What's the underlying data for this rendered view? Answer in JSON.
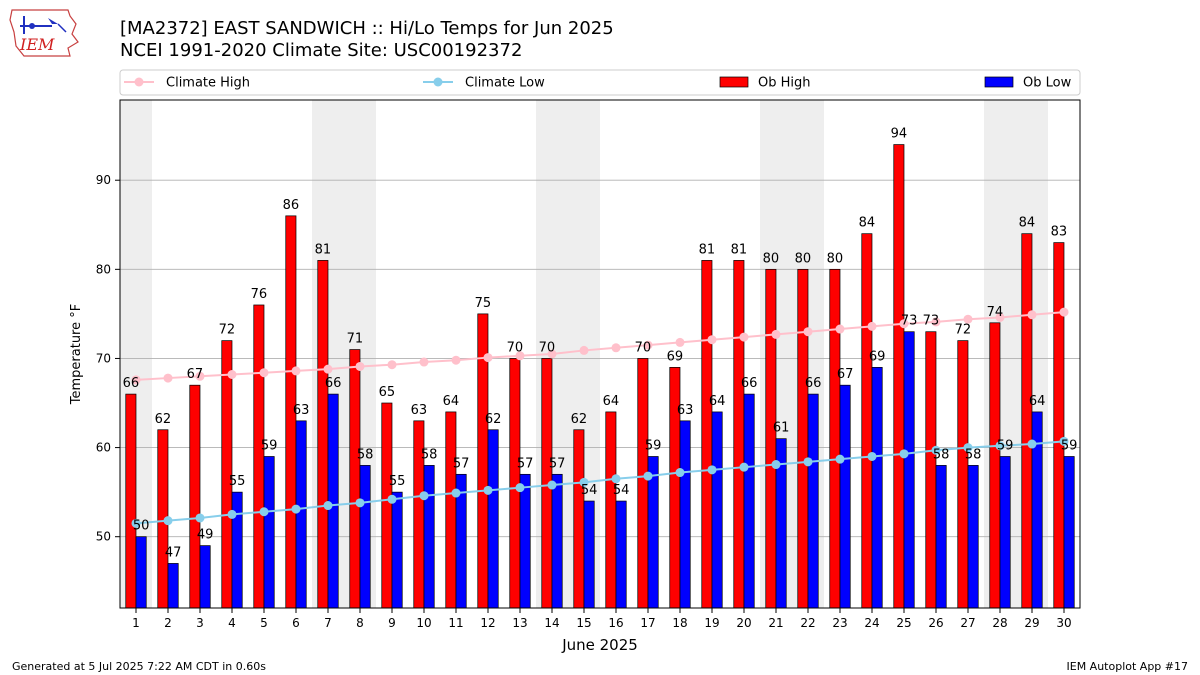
{
  "header": {
    "title_line1": "[MA2372] EAST SANDWICH :: Hi/Lo Temps for Jun 2025",
    "title_line2": "NCEI 1991-2020 Climate Site: USC00192372",
    "logo_text": "IEM"
  },
  "footer": {
    "generated": "Generated at 5 Jul 2025 7:22 AM CDT in 0.60s",
    "app": "IEM Autoplot App #17"
  },
  "colors": {
    "ob_high": "#ff0000",
    "ob_low": "#0000ff",
    "climate_high": "#ffc0cb",
    "climate_low": "#87ceeb",
    "weekend_shade": "#eeeeee",
    "grid": "#b0b0b0"
  },
  "chart_data": {
    "type": "bar",
    "xlabel": "June 2025",
    "ylabel": "Temperature °F",
    "ylim": [
      42,
      99
    ],
    "yticks": [
      50,
      60,
      70,
      80,
      90
    ],
    "grid": "horizontal",
    "legend_placement": "top",
    "categories": [
      "1",
      "2",
      "3",
      "4",
      "5",
      "6",
      "7",
      "8",
      "9",
      "10",
      "11",
      "12",
      "13",
      "14",
      "15",
      "16",
      "17",
      "18",
      "19",
      "20",
      "21",
      "22",
      "23",
      "24",
      "25",
      "26",
      "27",
      "28",
      "29",
      "30"
    ],
    "shaded_days": [
      1,
      7,
      8,
      14,
      15,
      21,
      22,
      28,
      29
    ],
    "series": [
      {
        "name": "Ob High",
        "kind": "bar",
        "values": [
          66,
          62,
          67,
          72,
          76,
          86,
          81,
          71,
          65,
          63,
          64,
          75,
          70,
          70,
          62,
          64,
          70,
          69,
          81,
          81,
          80,
          80,
          80,
          84,
          94,
          73,
          72,
          74,
          84,
          83
        ]
      },
      {
        "name": "Ob Low",
        "kind": "bar",
        "values": [
          50,
          47,
          49,
          55,
          59,
          63,
          66,
          58,
          55,
          58,
          57,
          62,
          57,
          57,
          54,
          54,
          59,
          63,
          64,
          66,
          61,
          66,
          67,
          69,
          73,
          58,
          58,
          59,
          64,
          59
        ]
      },
      {
        "name": "Climate High",
        "kind": "line",
        "values": [
          67.6,
          67.8,
          68.0,
          68.2,
          68.4,
          68.6,
          68.8,
          69.1,
          69.3,
          69.6,
          69.8,
          70.1,
          70.3,
          70.5,
          70.9,
          71.2,
          71.5,
          71.8,
          72.1,
          72.4,
          72.7,
          73.0,
          73.3,
          73.6,
          73.9,
          74.1,
          74.4,
          74.6,
          74.9,
          75.2
        ]
      },
      {
        "name": "Climate Low",
        "kind": "line",
        "values": [
          51.5,
          51.8,
          52.1,
          52.5,
          52.8,
          53.1,
          53.5,
          53.8,
          54.2,
          54.6,
          54.9,
          55.2,
          55.5,
          55.8,
          56.1,
          56.5,
          56.8,
          57.2,
          57.5,
          57.8,
          58.1,
          58.4,
          58.7,
          59.0,
          59.3,
          59.7,
          60.0,
          60.2,
          60.4,
          60.7
        ]
      }
    ]
  }
}
